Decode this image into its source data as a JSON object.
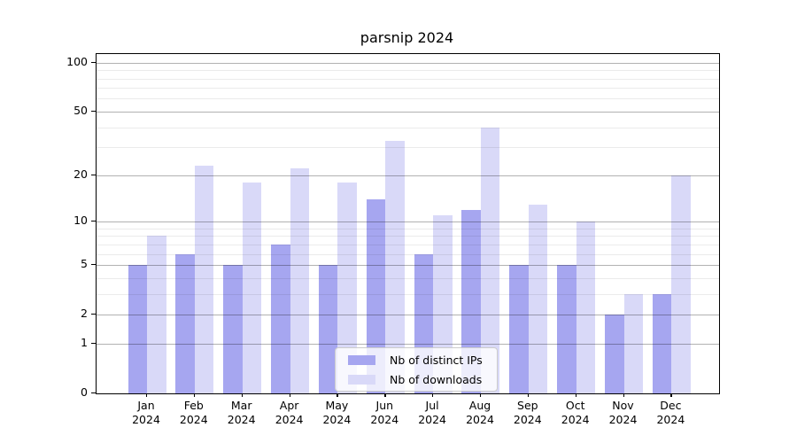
{
  "title": "parsnip 2024",
  "legend": {
    "items": [
      {
        "key": "distinct-ips",
        "label": "Nb of distinct IPs",
        "color": "#a6a6f0"
      },
      {
        "key": "downloads",
        "label": "Nb of downloads",
        "color": "#d9d9f8"
      }
    ]
  },
  "axes": {
    "y_tick_labels": [
      "100",
      "50",
      "20",
      "10",
      "5",
      "2",
      "1",
      "0"
    ],
    "x_tick_labels_line1": [
      "Jan",
      "Feb",
      "Mar",
      "Apr",
      "May",
      "Jun",
      "Jul",
      "Aug",
      "Sep",
      "Oct",
      "Nov",
      "Dec"
    ],
    "x_tick_labels_line2": [
      "2024",
      "2024",
      "2024",
      "2024",
      "2024",
      "2024",
      "2024",
      "2024",
      "2024",
      "2024",
      "2024",
      "2024"
    ]
  },
  "colors": {
    "series_distinct_ips": "#a6a6f0",
    "series_downloads": "#d9d9f8",
    "major_grid": "rgba(0,0,0,0.30)",
    "minor_grid": "rgba(0,0,0,0.08)",
    "axis": "#000000",
    "legend_border": "#cccccc",
    "legend_background": "rgba(255,255,255,0.8)"
  },
  "chart_data": {
    "type": "bar",
    "title": "parsnip 2024",
    "categories": [
      "Jan 2024",
      "Feb 2024",
      "Mar 2024",
      "Apr 2024",
      "May 2024",
      "Jun 2024",
      "Jul 2024",
      "Aug 2024",
      "Sep 2024",
      "Oct 2024",
      "Nov 2024",
      "Dec 2024"
    ],
    "series": [
      {
        "name": "Nb of distinct IPs",
        "key": "distinct-ips",
        "color": "#a6a6f0",
        "values": [
          5,
          6,
          5,
          7,
          5,
          14,
          6,
          12,
          5,
          5,
          2,
          3
        ]
      },
      {
        "name": "Nb of downloads",
        "key": "downloads",
        "color": "#d9d9f8",
        "values": [
          8,
          23,
          18,
          22,
          18,
          33,
          11,
          40,
          13,
          10,
          3,
          20
        ]
      }
    ],
    "xlabel": "",
    "ylabel": "",
    "yscale": "log1p",
    "ylim": [
      0,
      113
    ],
    "major_yticks": [
      0,
      1,
      2,
      5,
      10,
      20,
      50,
      100
    ],
    "minor_yticks": [
      3,
      4,
      6,
      7,
      8,
      9,
      30,
      40,
      60,
      70,
      80,
      90
    ],
    "grid": "both",
    "grid_above_bars": true,
    "legend_position": "lower center"
  }
}
